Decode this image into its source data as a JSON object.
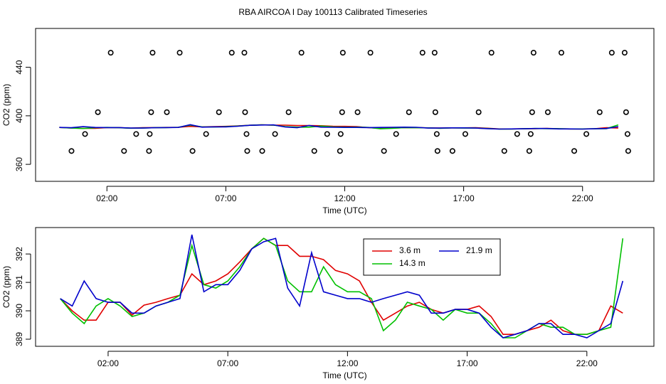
{
  "title": "RBA AIRCOA I  Day 100113  Calibrated Timeseries",
  "chart_data": [
    {
      "type": "line",
      "xlabel": "Time (UTC)",
      "ylabel": "CO2 (ppm)",
      "xlim": [
        -1,
        25
      ],
      "ylim": [
        346,
        472
      ],
      "xticks": [
        {
          "value": 2,
          "label": "02:00"
        },
        {
          "value": 7,
          "label": "07:00"
        },
        {
          "value": 12,
          "label": "12:00"
        },
        {
          "value": 17,
          "label": "17:00"
        },
        {
          "value": 22,
          "label": "22:00"
        }
      ],
      "yticks": [
        360,
        400,
        440
      ],
      "legend": false,
      "x": [
        0,
        0.5,
        1,
        1.5,
        2,
        2.5,
        3,
        3.5,
        4,
        4.5,
        5,
        5.5,
        6,
        6.5,
        7,
        7.5,
        8,
        8.5,
        9,
        9.5,
        10,
        10.5,
        11,
        11.5,
        12,
        12.5,
        13,
        13.5,
        14,
        14.5,
        15,
        15.5,
        16,
        16.5,
        17,
        17.5,
        18,
        18.5,
        19,
        19.5,
        20,
        20.5,
        21,
        21.5,
        22,
        22.5,
        23,
        23.5
      ],
      "series": [
        {
          "color": "#e00000",
          "values": [
            390.43,
            390.0,
            389.67,
            389.67,
            390.3,
            390.3,
            389.85,
            390.2,
            390.3,
            390.43,
            390.55,
            391.3,
            390.92,
            391.05,
            391.3,
            391.72,
            392.18,
            392.55,
            392.3,
            392.3,
            391.92,
            391.92,
            391.8,
            391.42,
            391.3,
            391.05,
            390.3,
            389.67,
            389.92,
            390.17,
            390.3,
            390.05,
            389.92,
            390.05,
            390.05,
            390.17,
            389.8,
            389.17,
            389.17,
            389.3,
            389.42,
            389.67,
            389.3,
            389.17,
            389.17,
            389.3,
            390.17,
            389.92
          ]
        },
        {
          "color": "#00c000",
          "values": [
            390.43,
            389.92,
            389.55,
            390.17,
            390.43,
            390.17,
            389.8,
            389.92,
            390.17,
            390.3,
            390.55,
            392.3,
            390.92,
            390.8,
            391.05,
            391.55,
            392.18,
            392.55,
            392.3,
            391.05,
            390.67,
            390.67,
            391.55,
            390.92,
            390.67,
            390.67,
            390.43,
            389.3,
            389.67,
            390.3,
            390.17,
            390.05,
            389.67,
            390.05,
            389.92,
            389.92,
            389.55,
            389.05,
            389.05,
            389.3,
            389.55,
            389.42,
            389.42,
            389.17,
            389.17,
            389.3,
            389.42,
            392.55
          ]
        },
        {
          "color": "#0000cc",
          "values": [
            390.43,
            390.17,
            391.05,
            390.43,
            390.3,
            390.3,
            389.92,
            389.92,
            390.17,
            390.3,
            390.43,
            392.68,
            390.67,
            390.92,
            390.92,
            391.42,
            392.18,
            392.43,
            392.55,
            390.8,
            390.17,
            392.05,
            390.67,
            390.55,
            390.43,
            390.43,
            390.3,
            390.43,
            390.55,
            390.67,
            390.55,
            389.92,
            389.92,
            390.05,
            390.05,
            389.92,
            389.42,
            389.05,
            389.17,
            389.3,
            389.55,
            389.55,
            389.17,
            389.17,
            389.05,
            389.3,
            389.55,
            391.05
          ]
        }
      ],
      "markers": {
        "shape": "circle",
        "color": "#000000",
        "x": [
          2.16,
          3.92,
          5.06,
          7.25,
          7.78,
          10.18,
          11.92,
          13.08,
          15.27,
          15.78,
          18.17,
          19.94,
          21.11,
          23.23,
          23.77,
          1.62,
          3.86,
          4.52,
          6.71,
          7.81,
          9.64,
          11.89,
          12.54,
          14.7,
          15.81,
          17.63,
          19.88,
          20.54,
          22.72,
          23.83,
          1.08,
          3.23,
          3.8,
          6.17,
          7.87,
          9.07,
          11.26,
          11.83,
          14.16,
          15.87,
          17.07,
          19.25,
          19.82,
          22.16,
          23.89,
          0.51,
          2.72,
          3.77,
          5.6,
          7.9,
          8.53,
          10.72,
          11.8,
          13.65,
          15.9,
          16.53,
          18.71,
          19.76,
          21.65,
          23.92
        ],
        "values": [
          452,
          452,
          452,
          452,
          452,
          452,
          452,
          452,
          452,
          452,
          452,
          452,
          452,
          452,
          452,
          403,
          403,
          403,
          403,
          403,
          403,
          403,
          403,
          403,
          403,
          403,
          403,
          403,
          403,
          403,
          385,
          385,
          385,
          385,
          385,
          385,
          385,
          385,
          385,
          385,
          385,
          385,
          385,
          385,
          385,
          371,
          371,
          371,
          371,
          371,
          371,
          371,
          371,
          371,
          371,
          371,
          371,
          371,
          371,
          371
        ]
      }
    },
    {
      "type": "line",
      "xlabel": "Time (UTC)",
      "ylabel": "CO2 (ppm)",
      "xlim": [
        -1.03,
        24.8
      ],
      "ylim": [
        388.75,
        392.93
      ],
      "xticks": [
        {
          "value": 2,
          "label": "02:00"
        },
        {
          "value": 7,
          "label": "07:00"
        },
        {
          "value": 12,
          "label": "12:00"
        },
        {
          "value": 17,
          "label": "17:00"
        },
        {
          "value": 22,
          "label": "22:00"
        }
      ],
      "yticks": [
        389,
        390,
        391,
        392
      ],
      "legend": "top-center",
      "x": [
        0,
        0.5,
        1,
        1.5,
        2,
        2.5,
        3,
        3.5,
        4,
        4.5,
        5,
        5.5,
        6,
        6.5,
        7,
        7.5,
        8,
        8.5,
        9,
        9.5,
        10,
        10.5,
        11,
        11.5,
        12,
        12.5,
        13,
        13.5,
        14,
        14.5,
        15,
        15.5,
        16,
        16.5,
        17,
        17.5,
        18,
        18.5,
        19,
        19.5,
        20,
        20.5,
        21,
        21.5,
        22,
        22.5,
        23,
        23.5
      ],
      "series": [
        {
          "name": "3.6 m",
          "color": "#e00000",
          "values": [
            390.43,
            390.0,
            389.67,
            389.67,
            390.3,
            390.3,
            389.85,
            390.2,
            390.3,
            390.43,
            390.55,
            391.3,
            390.92,
            391.05,
            391.3,
            391.72,
            392.18,
            392.55,
            392.3,
            392.3,
            391.92,
            391.92,
            391.8,
            391.42,
            391.3,
            391.05,
            390.3,
            389.67,
            389.92,
            390.17,
            390.3,
            390.05,
            389.92,
            390.05,
            390.05,
            390.17,
            389.8,
            389.17,
            389.17,
            389.3,
            389.42,
            389.67,
            389.3,
            389.17,
            389.17,
            389.3,
            390.17,
            389.92
          ]
        },
        {
          "name": "14.3 m",
          "color": "#00c000",
          "values": [
            390.43,
            389.92,
            389.55,
            390.17,
            390.43,
            390.17,
            389.8,
            389.92,
            390.17,
            390.3,
            390.55,
            392.3,
            390.92,
            390.8,
            391.05,
            391.55,
            392.18,
            392.55,
            392.3,
            391.05,
            390.67,
            390.67,
            391.55,
            390.92,
            390.67,
            390.67,
            390.43,
            389.3,
            389.67,
            390.3,
            390.17,
            390.05,
            389.67,
            390.05,
            389.92,
            389.92,
            389.55,
            389.05,
            389.05,
            389.3,
            389.55,
            389.42,
            389.42,
            389.17,
            389.17,
            389.3,
            389.42,
            392.55
          ]
        },
        {
          "name": "21.9 m",
          "color": "#0000cc",
          "values": [
            390.43,
            390.17,
            391.05,
            390.43,
            390.3,
            390.3,
            389.92,
            389.92,
            390.17,
            390.3,
            390.43,
            392.68,
            390.67,
            390.92,
            390.92,
            391.42,
            392.18,
            392.43,
            392.55,
            390.8,
            390.17,
            392.05,
            390.67,
            390.55,
            390.43,
            390.43,
            390.3,
            390.43,
            390.55,
            390.67,
            390.55,
            389.92,
            389.92,
            390.05,
            390.05,
            389.92,
            389.42,
            389.05,
            389.17,
            389.3,
            389.55,
            389.55,
            389.17,
            389.17,
            389.05,
            389.3,
            389.55,
            391.05
          ]
        }
      ]
    }
  ]
}
